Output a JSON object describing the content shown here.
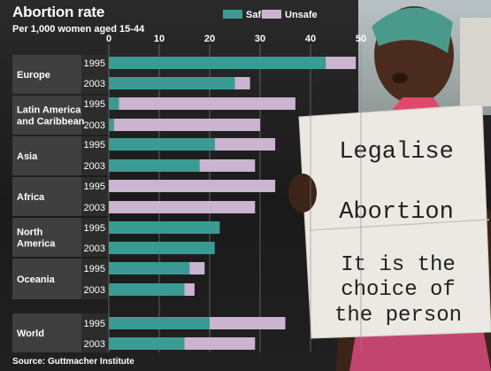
{
  "title": "Abortion rate",
  "subtitle": "Per 1,000 women aged 15-44",
  "source": "Source: Guttmacher Institute",
  "colors": {
    "safe": "#3a9b94",
    "unsafe": "#cbb4cf"
  },
  "photo": {
    "sign_lines": [
      "Legalise",
      "Abortion",
      "It is the",
      "choice of",
      "the person"
    ]
  },
  "chart_data": {
    "type": "bar",
    "orientation": "horizontal",
    "stacked": true,
    "title": "Abortion rate",
    "subtitle": "Per 1,000 women aged 15-44",
    "xlim": [
      0,
      50
    ],
    "x_ticks": [
      "0",
      "10",
      "20",
      "30",
      "40",
      "50"
    ],
    "legend": [
      "Safe",
      "Unsafe"
    ],
    "legend_position": "top",
    "grid": true,
    "groups": [
      {
        "region": "Europe",
        "rows": [
          {
            "year": "1995",
            "safe": 43,
            "unsafe": 6
          },
          {
            "year": "2003",
            "safe": 25,
            "unsafe": 3
          }
        ]
      },
      {
        "region": "Latin America and Caribbean",
        "rows": [
          {
            "year": "1995",
            "safe": 2,
            "unsafe": 35
          },
          {
            "year": "2003",
            "safe": 1,
            "unsafe": 29
          }
        ]
      },
      {
        "region": "Asia",
        "rows": [
          {
            "year": "1995",
            "safe": 21,
            "unsafe": 12
          },
          {
            "year": "2003",
            "safe": 18,
            "unsafe": 11
          }
        ]
      },
      {
        "region": "Africa",
        "rows": [
          {
            "year": "1995",
            "safe": 0,
            "unsafe": 33
          },
          {
            "year": "2003",
            "safe": 0,
            "unsafe": 29
          }
        ]
      },
      {
        "region": "North America",
        "rows": [
          {
            "year": "1995",
            "safe": 22,
            "unsafe": 0
          },
          {
            "year": "2003",
            "safe": 21,
            "unsafe": 0
          }
        ]
      },
      {
        "region": "Oceania",
        "rows": [
          {
            "year": "1995",
            "safe": 16,
            "unsafe": 3
          },
          {
            "year": "2003",
            "safe": 15,
            "unsafe": 2
          }
        ]
      },
      {
        "region": "World",
        "rows": [
          {
            "year": "1995",
            "safe": 20,
            "unsafe": 15
          },
          {
            "year": "2003",
            "safe": 15,
            "unsafe": 14
          }
        ]
      }
    ]
  }
}
